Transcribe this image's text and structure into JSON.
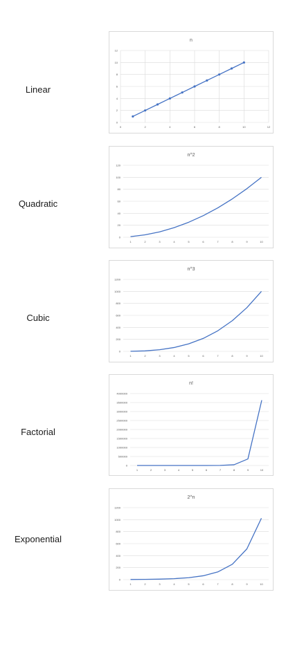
{
  "labels": [
    "Linear",
    "Quadratic",
    "Cubic",
    "Factorial",
    "Exponential"
  ],
  "chart_data": [
    {
      "type": "scatter",
      "title": "n",
      "x": [
        1,
        2,
        3,
        4,
        5,
        6,
        7,
        8,
        9,
        10
      ],
      "series": [
        {
          "values": [
            1,
            2,
            3,
            4,
            5,
            6,
            7,
            8,
            9,
            10
          ]
        }
      ],
      "xlim": [
        0,
        12
      ],
      "ylim": [
        0,
        12
      ],
      "xticks": [
        "0",
        "2",
        "4",
        "6",
        "8",
        "10",
        "12"
      ],
      "yticks": [
        "0",
        "2",
        "4",
        "6",
        "8",
        "10",
        "12"
      ],
      "grid": true,
      "markers": true,
      "color": "#4472c4"
    },
    {
      "type": "line",
      "title": "n^2",
      "categories": [
        "1",
        "2",
        "3",
        "4",
        "5",
        "6",
        "7",
        "8",
        "9",
        "10"
      ],
      "series": [
        {
          "values": [
            1,
            4,
            9,
            16,
            25,
            36,
            49,
            64,
            81,
            100
          ]
        }
      ],
      "ylim": [
        0,
        120
      ],
      "yticks": [
        "0",
        "20",
        "40",
        "60",
        "80",
        "100",
        "120"
      ],
      "grid": true,
      "color": "#4472c4"
    },
    {
      "type": "line",
      "title": "n^3",
      "categories": [
        "1",
        "2",
        "3",
        "4",
        "5",
        "6",
        "7",
        "8",
        "9",
        "10"
      ],
      "series": [
        {
          "values": [
            1,
            8,
            27,
            64,
            125,
            216,
            343,
            512,
            729,
            1000
          ]
        }
      ],
      "ylim": [
        0,
        1200
      ],
      "yticks": [
        "0",
        "200",
        "400",
        "600",
        "800",
        "1000",
        "1200"
      ],
      "grid": true,
      "color": "#4472c4"
    },
    {
      "type": "line",
      "title": "n!",
      "categories": [
        "1",
        "2",
        "3",
        "4",
        "5",
        "6",
        "7",
        "8",
        "9",
        "10"
      ],
      "series": [
        {
          "values": [
            1,
            2,
            6,
            24,
            120,
            720,
            5040,
            40320,
            362880,
            3628800
          ]
        }
      ],
      "ylim": [
        0,
        4000000
      ],
      "yticks": [
        "0",
        "500000",
        "1000000",
        "1500000",
        "2000000",
        "2500000",
        "3000000",
        "3500000",
        "4000000"
      ],
      "grid": true,
      "color": "#4472c4"
    },
    {
      "type": "line",
      "title": "2^n",
      "categories": [
        "1",
        "2",
        "3",
        "4",
        "5",
        "6",
        "7",
        "8",
        "9",
        "10"
      ],
      "series": [
        {
          "values": [
            2,
            4,
            8,
            16,
            32,
            64,
            128,
            256,
            512,
            1024
          ]
        }
      ],
      "ylim": [
        0,
        1200
      ],
      "yticks": [
        "0",
        "200",
        "400",
        "600",
        "800",
        "1000",
        "1200"
      ],
      "grid": true,
      "color": "#4472c4"
    }
  ]
}
